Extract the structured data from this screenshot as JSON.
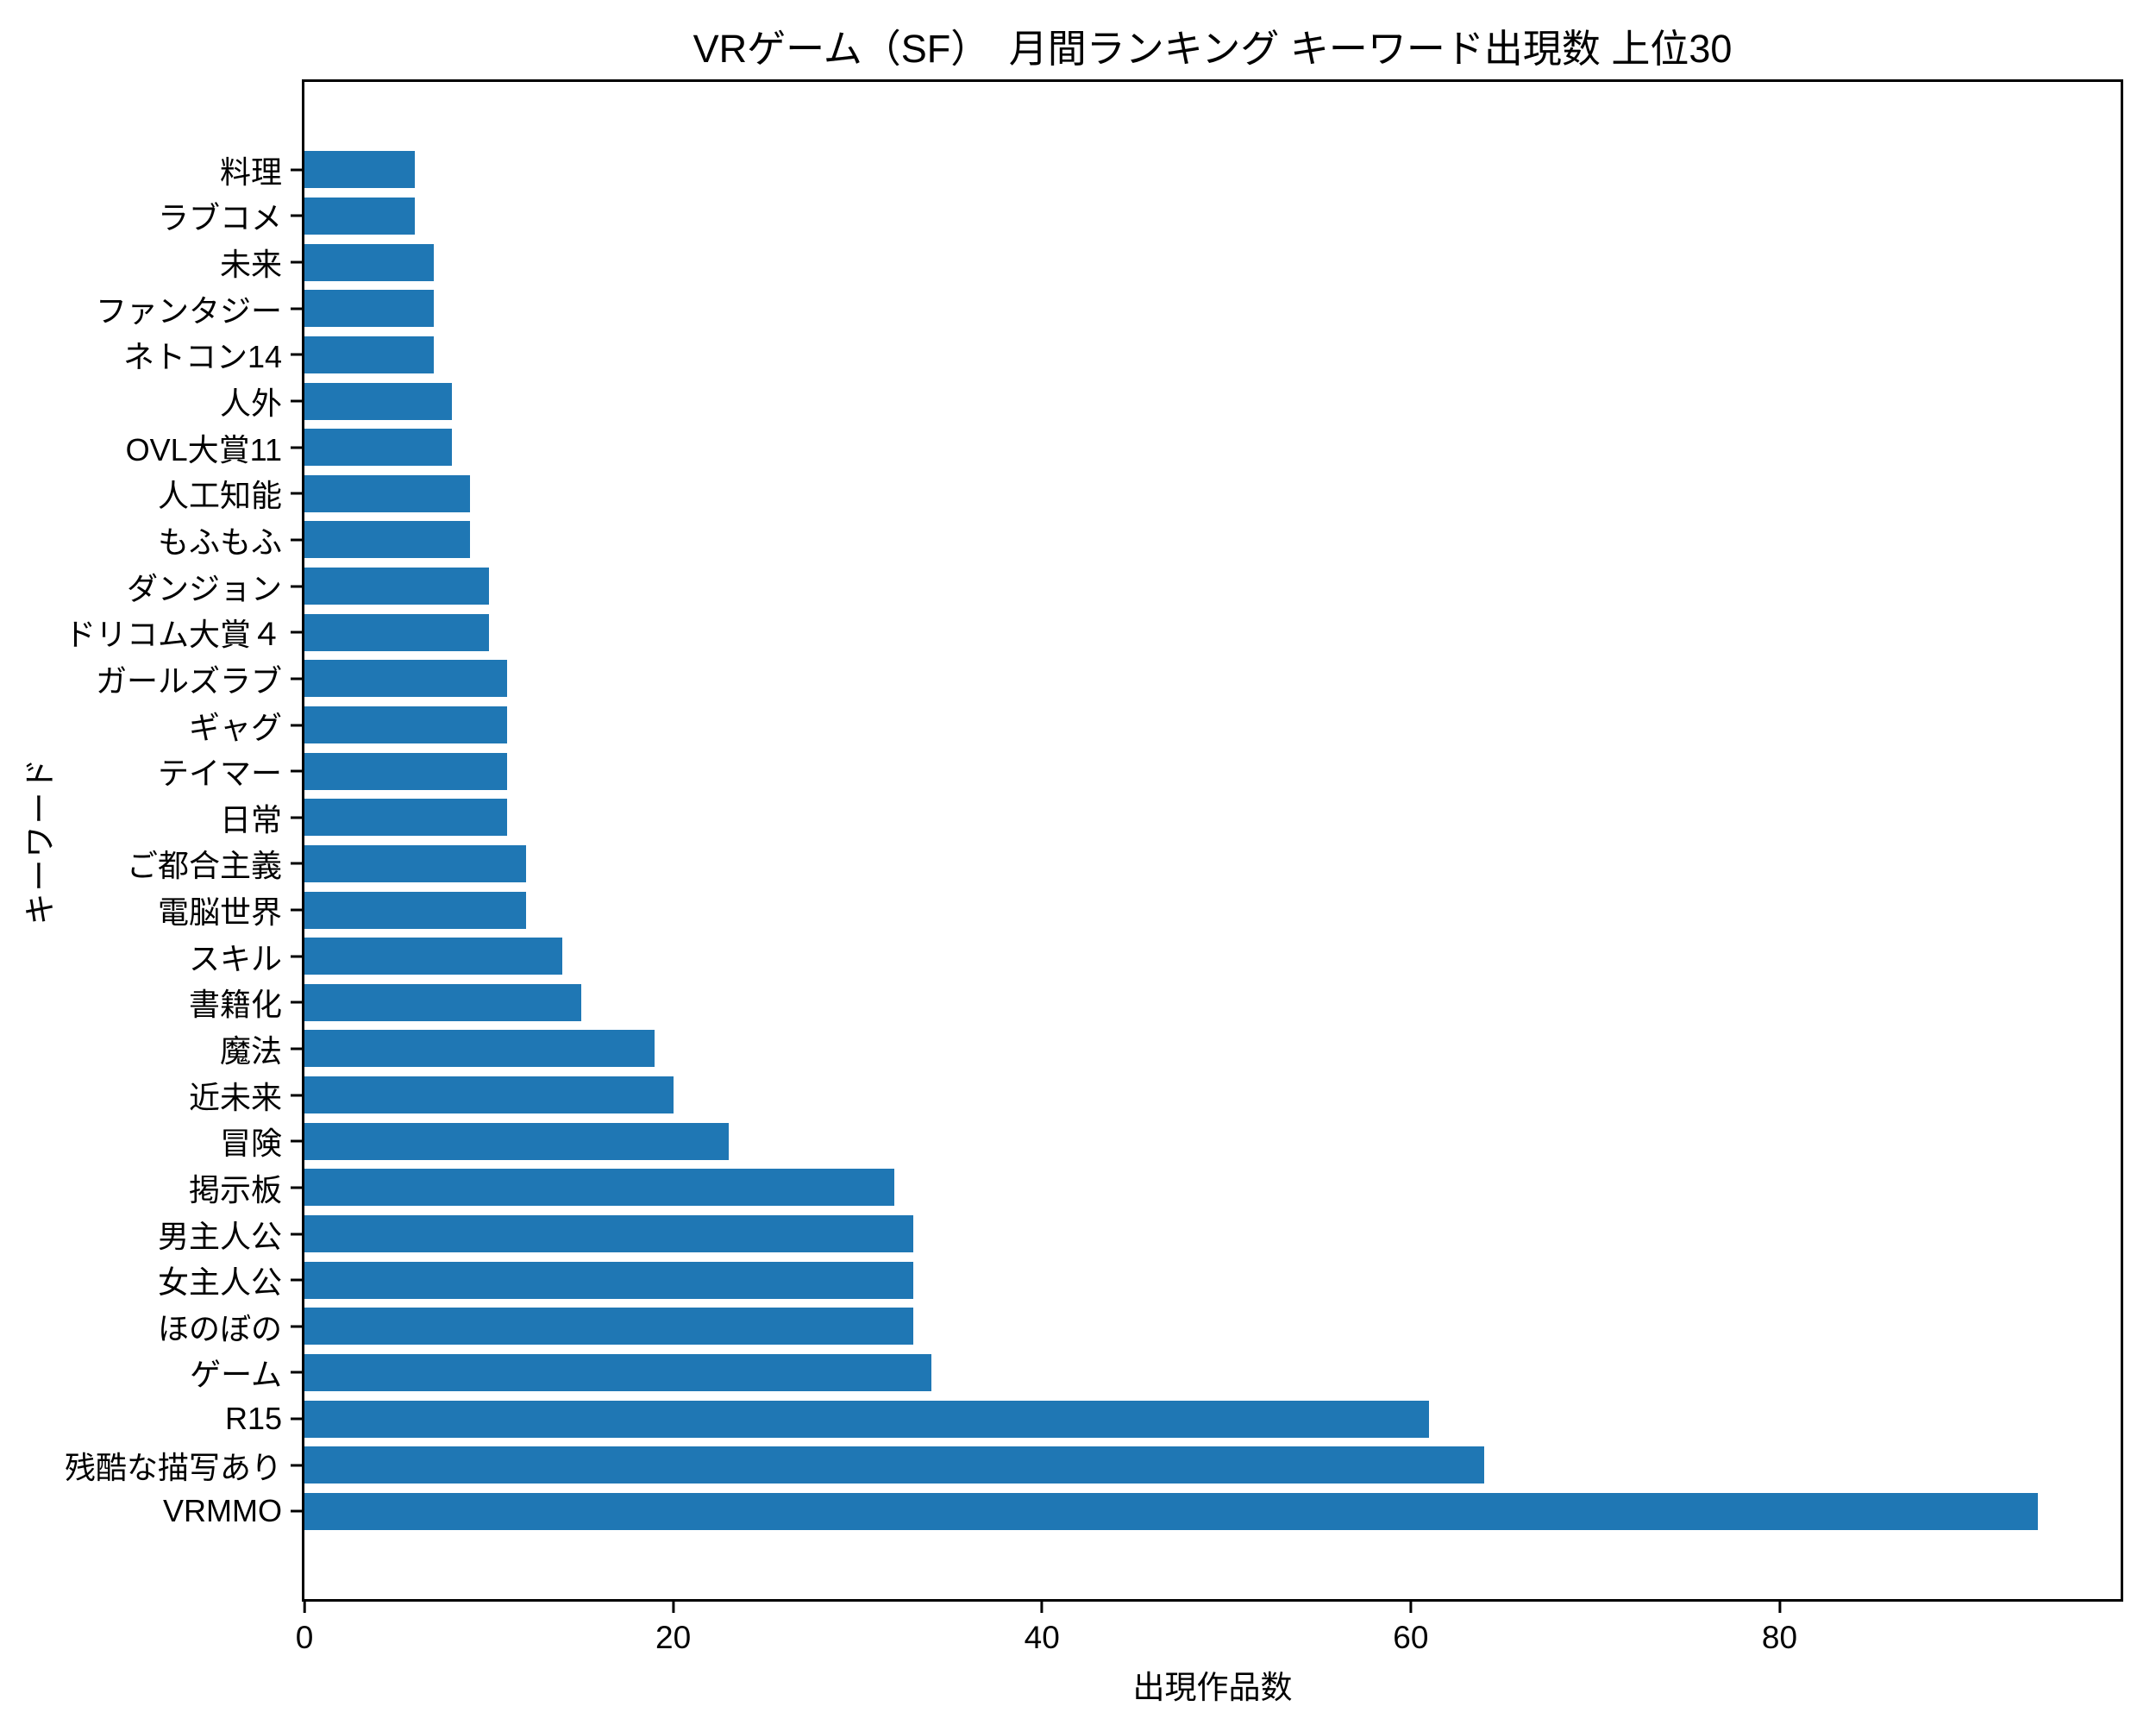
{
  "chart_data": {
    "type": "bar",
    "orientation": "horizontal",
    "title": "VRゲーム（SF）　月間ランキング キーワード出現数 上位30",
    "xlabel": "出現作品数",
    "ylabel": "キーワード",
    "categories_top_to_bottom": [
      "料理",
      "ラブコメ",
      "未来",
      "ファンタジー",
      "ネトコン14",
      "人外",
      "OVL大賞11",
      "人工知能",
      "もふもふ",
      "ダンジョン",
      "ドリコム大賞４",
      "ガールズラブ",
      "ギャグ",
      "テイマー",
      "日常",
      "ご都合主義",
      "電脳世界",
      "スキル",
      "書籍化",
      "魔法",
      "近未来",
      "冒険",
      "掲示板",
      "男主人公",
      "女主人公",
      "ほのぼの",
      "ゲーム",
      "R15",
      "残酷な描写あり",
      "VRMMO"
    ],
    "values": [
      6,
      6,
      7,
      7,
      7,
      8,
      8,
      9,
      9,
      10,
      10,
      11,
      11,
      11,
      11,
      12,
      12,
      14,
      15,
      19,
      20,
      23,
      32,
      33,
      33,
      33,
      34,
      61,
      64,
      94
    ],
    "xlim": [
      0,
      98.5
    ],
    "xticks": [
      0,
      20,
      40,
      60,
      80
    ],
    "grid": false,
    "legend": null,
    "bar_color": "#1f77b4"
  },
  "colors": {
    "bar": "#1f77b4",
    "background": "#ffffff",
    "axis": "#000000"
  }
}
